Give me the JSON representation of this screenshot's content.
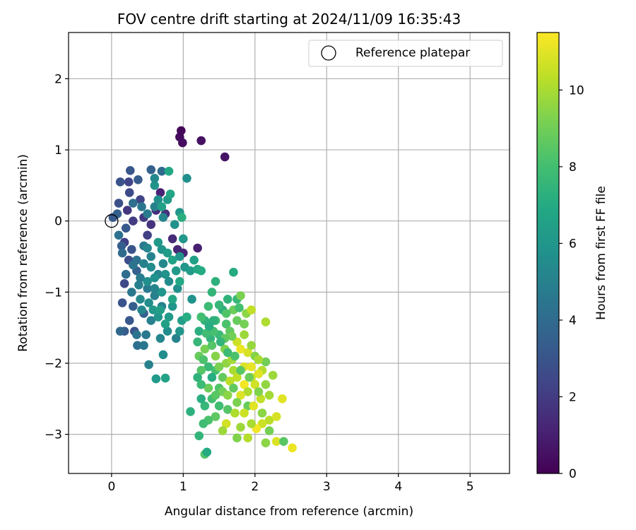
{
  "chart_data": {
    "type": "scatter",
    "title": "FOV centre drift starting at 2024/11/09 16:35:43",
    "xlabel": "Angular distance from reference (arcmin)",
    "ylabel": "Rotation from reference (arcmin)",
    "xlim": [
      -0.6,
      5.55
    ],
    "ylim": [
      -3.55,
      2.65
    ],
    "xticks": [
      0,
      1,
      2,
      3,
      4,
      5
    ],
    "yticks": [
      -3,
      -2,
      -1,
      0,
      1,
      2
    ],
    "grid": true,
    "legend": {
      "position": "top-right",
      "entries": [
        "Reference platepar"
      ]
    },
    "reference_point": {
      "x": 0.0,
      "y": 0.0,
      "label": "Reference platepar"
    },
    "colorbar": {
      "label": "Hours from first FF file",
      "colormap": "viridis",
      "min": 0,
      "max": 11.5,
      "ticks": [
        0,
        2,
        4,
        6,
        8,
        10
      ]
    },
    "points": [
      [
        0.97,
        1.27,
        0.2
      ],
      [
        0.95,
        1.18,
        0.3
      ],
      [
        0.99,
        1.1,
        0.4
      ],
      [
        1.25,
        1.13,
        0.5
      ],
      [
        1.58,
        0.9,
        0.6
      ],
      [
        0.22,
        0.15,
        1.8
      ],
      [
        0.3,
        0.0,
        2.0
      ],
      [
        0.45,
        0.05,
        1.9
      ],
      [
        0.5,
        -0.2,
        2.2
      ],
      [
        0.18,
        -0.3,
        2.1
      ],
      [
        0.62,
        0.15,
        1.5
      ],
      [
        0.55,
        -0.05,
        1.7
      ],
      [
        0.75,
        0.1,
        1.6
      ],
      [
        0.85,
        -0.25,
        1.4
      ],
      [
        0.92,
        -0.4,
        1.3
      ],
      [
        1.0,
        -0.45,
        1.2
      ],
      [
        1.2,
        -0.38,
        1.0
      ],
      [
        0.68,
        0.4,
        1.1
      ],
      [
        0.4,
        0.3,
        2.3
      ],
      [
        0.25,
        0.4,
        2.6
      ],
      [
        0.24,
        0.55,
        2.4
      ],
      [
        0.12,
        0.55,
        3.0
      ],
      [
        0.1,
        0.25,
        2.8
      ],
      [
        0.02,
        0.05,
        3.2
      ],
      [
        0.08,
        0.1,
        3.5
      ],
      [
        0.26,
        0.71,
        3.1
      ],
      [
        0.37,
        0.58,
        3.3
      ],
      [
        0.55,
        0.72,
        3.6
      ],
      [
        0.7,
        0.7,
        4.0
      ],
      [
        0.2,
        -0.1,
        3.2
      ],
      [
        0.14,
        -0.35,
        3.4
      ],
      [
        0.28,
        -0.4,
        3.0
      ],
      [
        0.24,
        -0.55,
        2.7
      ],
      [
        0.18,
        -0.88,
        2.5
      ],
      [
        0.35,
        -0.7,
        3.6
      ],
      [
        0.3,
        -1.2,
        3.4
      ],
      [
        0.15,
        -1.15,
        3.0
      ],
      [
        0.25,
        -1.4,
        3.1
      ],
      [
        0.32,
        -1.55,
        2.9
      ],
      [
        0.18,
        -1.55,
        3.3
      ],
      [
        0.12,
        -1.55,
        3.8
      ],
      [
        0.45,
        -1.3,
        3.5
      ],
      [
        0.35,
        -1.6,
        4.4
      ],
      [
        0.48,
        -1.6,
        4.6
      ],
      [
        0.36,
        -1.75,
        4.2
      ],
      [
        0.45,
        -1.75,
        4.5
      ],
      [
        0.52,
        -2.02,
        5.0
      ],
      [
        0.68,
        -1.65,
        5.3
      ],
      [
        0.72,
        -1.88,
        5.5
      ],
      [
        0.78,
        -1.55,
        5.6
      ],
      [
        0.55,
        -1.4,
        5.0
      ],
      [
        0.62,
        -2.22,
        6.2
      ],
      [
        0.75,
        -2.21,
        6.6
      ],
      [
        0.9,
        -1.65,
        5.1
      ],
      [
        0.95,
        -1.55,
        6.0
      ],
      [
        1.12,
        -1.1,
        5.8
      ],
      [
        0.98,
        -1.4,
        6.4
      ],
      [
        0.85,
        -1.2,
        5.9
      ],
      [
        0.7,
        -1.2,
        5.0
      ],
      [
        0.6,
        -1.05,
        4.9
      ],
      [
        0.5,
        -0.95,
        4.7
      ],
      [
        0.4,
        -0.8,
        4.8
      ],
      [
        0.35,
        -0.55,
        4.3
      ],
      [
        0.45,
        -0.35,
        4.6
      ],
      [
        0.55,
        -0.5,
        5.1
      ],
      [
        0.65,
        -0.75,
        5.2
      ],
      [
        0.72,
        -0.6,
        5.4
      ],
      [
        0.8,
        -0.85,
        5.5
      ],
      [
        0.92,
        -0.95,
        5.7
      ],
      [
        1.02,
        -0.65,
        6.0
      ],
      [
        1.1,
        -0.7,
        6.3
      ],
      [
        1.15,
        -0.55,
        6.5
      ],
      [
        1.2,
        -0.68,
        6.8
      ],
      [
        1.25,
        -0.7,
        7.0
      ],
      [
        1.0,
        -0.25,
        6.1
      ],
      [
        0.88,
        -0.05,
        5.8
      ],
      [
        0.72,
        0.05,
        5.3
      ],
      [
        0.6,
        0.2,
        5.0
      ],
      [
        0.5,
        0.1,
        4.8
      ],
      [
        0.42,
        0.2,
        4.5
      ],
      [
        0.3,
        0.25,
        4.2
      ],
      [
        0.6,
        0.5,
        5.9
      ],
      [
        0.65,
        0.3,
        5.6
      ],
      [
        0.78,
        0.3,
        6.2
      ],
      [
        0.7,
        0.2,
        6.5
      ],
      [
        0.82,
        0.38,
        6.8
      ],
      [
        0.95,
        0.12,
        6.0
      ],
      [
        1.05,
        0.6,
        5.7
      ],
      [
        0.8,
        0.7,
        6.9
      ],
      [
        0.6,
        0.6,
        5.4
      ],
      [
        0.98,
        0.05,
        7.2
      ],
      [
        0.65,
        -0.3,
        6.1
      ],
      [
        0.7,
        -0.4,
        5.9
      ],
      [
        0.78,
        -0.45,
        6.3
      ],
      [
        0.85,
        -0.55,
        6.6
      ],
      [
        0.9,
        -0.7,
        6.2
      ],
      [
        0.6,
        -0.8,
        5.8
      ],
      [
        0.55,
        -0.65,
        5.5
      ],
      [
        0.45,
        -0.6,
        5.0
      ],
      [
        0.38,
        -0.9,
        4.9
      ],
      [
        0.28,
        -1.0,
        4.6
      ],
      [
        0.2,
        -0.75,
        4.1
      ],
      [
        0.15,
        -0.45,
        4.0
      ],
      [
        0.1,
        -0.2,
        4.3
      ],
      [
        0.4,
        -1.1,
        5.4
      ],
      [
        0.52,
        -1.15,
        5.6
      ],
      [
        0.65,
        -1.35,
        5.9
      ],
      [
        0.8,
        -1.35,
        6.2
      ],
      [
        0.75,
        -1.45,
        6.5
      ],
      [
        0.85,
        -1.1,
        6.7
      ],
      [
        0.95,
        -0.85,
        6.9
      ],
      [
        1.05,
        -1.35,
        7.1
      ],
      [
        0.7,
        -1.0,
        6.0
      ],
      [
        0.5,
        -0.85,
        5.7
      ],
      [
        0.42,
        -1.25,
        5.3
      ],
      [
        0.58,
        -1.25,
        6.1
      ],
      [
        0.68,
        -1.25,
        6.4
      ],
      [
        0.3,
        -0.62,
        4.4
      ],
      [
        0.6,
        -0.95,
        5.2
      ],
      [
        0.75,
        -0.75,
        5.8
      ],
      [
        0.95,
        -0.5,
        5.9
      ],
      [
        0.5,
        -0.38,
        5.3
      ],
      [
        1.45,
        -0.85,
        7.3
      ],
      [
        1.7,
        -0.72,
        7.0
      ],
      [
        1.4,
        -1.0,
        7.5
      ],
      [
        1.55,
        -1.25,
        7.2
      ],
      [
        1.75,
        -1.1,
        7.6
      ],
      [
        1.35,
        -1.2,
        7.8
      ],
      [
        1.3,
        -1.4,
        7.4
      ],
      [
        1.22,
        -1.55,
        7.2
      ],
      [
        1.25,
        -1.35,
        8.0
      ],
      [
        1.45,
        -1.4,
        7.9
      ],
      [
        1.6,
        -1.45,
        8.2
      ],
      [
        1.5,
        -1.6,
        7.7
      ],
      [
        1.38,
        -1.65,
        7.5
      ],
      [
        1.65,
        -1.55,
        8.6
      ],
      [
        1.75,
        -1.4,
        8.8
      ],
      [
        1.8,
        -1.05,
        9.2
      ],
      [
        1.88,
        -1.3,
        9.5
      ],
      [
        1.95,
        -1.25,
        10.4
      ],
      [
        2.15,
        -1.42,
        10.1
      ],
      [
        1.85,
        -1.6,
        9.8
      ],
      [
        1.75,
        -1.7,
        10.6
      ],
      [
        1.8,
        -1.8,
        11.2
      ],
      [
        1.9,
        -1.85,
        10.8
      ],
      [
        2.0,
        -1.9,
        9.4
      ],
      [
        2.15,
        -1.98,
        9.0
      ],
      [
        2.1,
        -2.1,
        10.2
      ],
      [
        2.25,
        -2.17,
        9.8
      ],
      [
        2.05,
        -2.15,
        11.0
      ],
      [
        1.95,
        -2.2,
        10.5
      ],
      [
        1.85,
        -2.3,
        11.3
      ],
      [
        2.0,
        -2.3,
        10.7
      ],
      [
        2.15,
        -2.3,
        9.6
      ],
      [
        1.9,
        -2.4,
        10.1
      ],
      [
        1.8,
        -2.45,
        10.9
      ],
      [
        1.75,
        -2.55,
        9.2
      ],
      [
        1.9,
        -2.6,
        8.8
      ],
      [
        2.1,
        -2.7,
        9.5
      ],
      [
        2.2,
        -2.8,
        10.3
      ],
      [
        2.3,
        -2.75,
        10.8
      ],
      [
        2.38,
        -2.5,
        11.0
      ],
      [
        2.1,
        -2.85,
        10.6
      ],
      [
        2.02,
        -2.92,
        11.3
      ],
      [
        1.95,
        -2.85,
        10.0
      ],
      [
        1.8,
        -2.9,
        9.8
      ],
      [
        1.75,
        -3.05,
        9.3
      ],
      [
        1.9,
        -3.05,
        10.2
      ],
      [
        2.15,
        -3.12,
        9.5
      ],
      [
        2.3,
        -3.1,
        10.9
      ],
      [
        2.4,
        -3.1,
        8.5
      ],
      [
        2.52,
        -3.19,
        11.2
      ],
      [
        2.2,
        -2.95,
        9.1
      ],
      [
        1.6,
        -2.85,
        10.7
      ],
      [
        1.55,
        -2.95,
        9.8
      ],
      [
        1.45,
        -2.75,
        8.6
      ],
      [
        1.35,
        -2.8,
        8.2
      ],
      [
        1.28,
        -2.85,
        7.9
      ],
      [
        1.3,
        -3.28,
        8.4
      ],
      [
        1.33,
        -3.25,
        7.0
      ],
      [
        1.22,
        -3.02,
        7.5
      ],
      [
        1.1,
        -2.68,
        7.3
      ],
      [
        1.3,
        -2.6,
        7.6
      ],
      [
        1.4,
        -2.5,
        8.0
      ],
      [
        1.5,
        -2.35,
        8.3
      ],
      [
        1.55,
        -2.2,
        8.7
      ],
      [
        1.45,
        -2.1,
        8.1
      ],
      [
        1.35,
        -2.05,
        7.7
      ],
      [
        1.25,
        -2.1,
        8.4
      ],
      [
        1.22,
        -1.9,
        8.8
      ],
      [
        1.3,
        -1.8,
        9.1
      ],
      [
        1.45,
        -1.9,
        9.4
      ],
      [
        1.6,
        -2.0,
        9.6
      ],
      [
        1.7,
        -2.1,
        10.0
      ],
      [
        1.65,
        -2.25,
        10.3
      ],
      [
        1.55,
        -2.4,
        9.0
      ],
      [
        1.45,
        -2.45,
        8.5
      ],
      [
        1.35,
        -2.35,
        8.9
      ],
      [
        1.25,
        -2.3,
        7.8
      ],
      [
        1.2,
        -2.2,
        7.4
      ],
      [
        1.25,
        -2.5,
        7.2
      ],
      [
        1.4,
        -2.2,
        7.1
      ],
      [
        1.5,
        -2.6,
        7.9
      ],
      [
        1.62,
        -2.65,
        8.4
      ],
      [
        1.7,
        -2.35,
        8.7
      ],
      [
        1.58,
        -1.8,
        9.3
      ],
      [
        1.68,
        -1.95,
        9.9
      ],
      [
        1.75,
        -2.2,
        10.4
      ],
      [
        1.85,
        -2.05,
        10.9
      ],
      [
        1.95,
        -2.05,
        11.1
      ],
      [
        2.05,
        -1.95,
        10.0
      ],
      [
        1.95,
        -1.75,
        9.7
      ],
      [
        1.85,
        -1.45,
        9.1
      ],
      [
        1.7,
        -1.25,
        8.9
      ],
      [
        1.6,
        -1.3,
        8.3
      ],
      [
        1.5,
        -1.18,
        7.6
      ],
      [
        1.62,
        -1.1,
        7.4
      ],
      [
        1.78,
        -1.22,
        8.0
      ],
      [
        1.68,
        -1.62,
        9.0
      ],
      [
        1.58,
        -1.65,
        8.6
      ],
      [
        1.42,
        -1.55,
        8.1
      ],
      [
        1.32,
        -1.58,
        7.9
      ],
      [
        1.2,
        -1.7,
        7.6
      ],
      [
        1.28,
        -1.95,
        8.2
      ],
      [
        1.4,
        -1.75,
        8.4
      ],
      [
        1.5,
        -2.05,
        9.2
      ],
      [
        1.62,
        -2.45,
        9.5
      ],
      [
        1.72,
        -2.7,
        10.1
      ],
      [
        1.85,
        -2.7,
        10.6
      ],
      [
        1.98,
        -2.6,
        11.0
      ],
      [
        2.08,
        -2.5,
        10.4
      ],
      [
        2.2,
        -2.45,
        9.9
      ],
      [
        2.05,
        -2.4,
        9.3
      ],
      [
        1.92,
        -2.2,
        8.9
      ],
      [
        1.8,
        -2.1,
        8.5
      ],
      [
        1.72,
        -1.9,
        8.2
      ],
      [
        1.62,
        -1.85,
        7.8
      ],
      [
        1.52,
        -1.7,
        7.5
      ],
      [
        1.42,
        -1.4,
        7.3
      ],
      [
        1.36,
        -1.48,
        7.1
      ]
    ]
  }
}
